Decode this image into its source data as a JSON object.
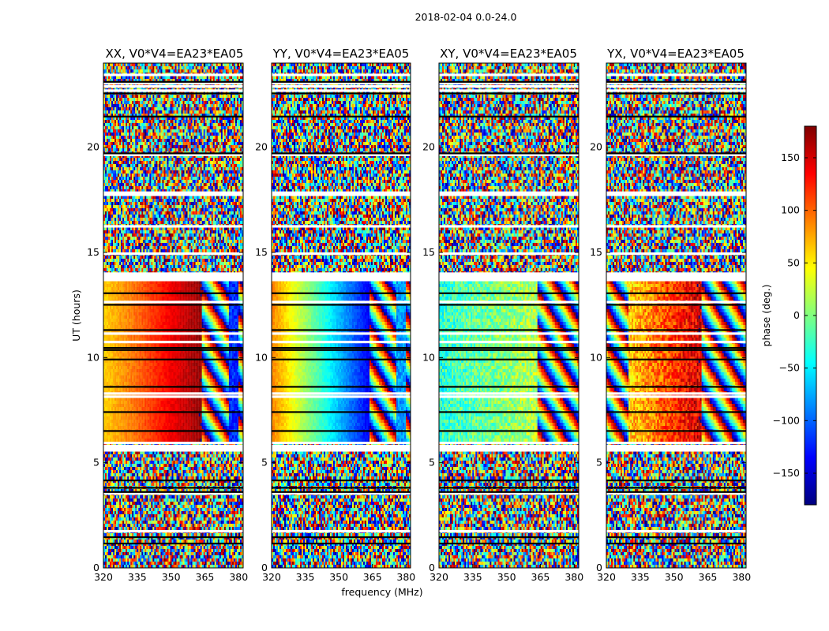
{
  "figure": {
    "suptitle": "2018-02-04 0.0-24.0"
  },
  "chart_data": {
    "type": "heatmap",
    "title": "2018-02-04 0.0-24.0",
    "xlabel": "frequency (MHz)",
    "ylabel": "UT (hours)",
    "xlim": [
      320,
      382
    ],
    "ylim": [
      0,
      24
    ],
    "xticks": [
      320,
      335,
      350,
      365,
      380
    ],
    "yticks": [
      0,
      5,
      10,
      15,
      20
    ],
    "colorbar": {
      "label": "phase (deg.)",
      "range": [
        -180,
        180
      ],
      "ticks": [
        150,
        100,
        50,
        0,
        -50,
        -100,
        -150
      ],
      "tick_labels": [
        "150",
        "100",
        "50",
        "0",
        "−50",
        "−100",
        "−150"
      ],
      "colormap": "jet",
      "colors": [
        "#00007f",
        "#0000ff",
        "#0080ff",
        "#00ffff",
        "#80ff80",
        "#ffff00",
        "#ff8000",
        "#ff0000",
        "#7f0000"
      ]
    },
    "panels": [
      {
        "name": "XX",
        "title": "XX, V0*V4=EA23*EA05",
        "coherent_ut": [
          6.0,
          13.6
        ],
        "coherent_freq": [
          320,
          364
        ],
        "phase_start": 60,
        "phase_end": 175,
        "edge_channel_phase": -120
      },
      {
        "name": "YY",
        "title": "YY, V0*V4=EA23*EA05",
        "coherent_ut": [
          6.0,
          13.6
        ],
        "coherent_freq": [
          320,
          364
        ],
        "phase_start": 90,
        "phase_end": -140,
        "edge_channel_phase": -80
      },
      {
        "name": "XY",
        "title": "XY, V0*V4=EA23*EA05",
        "coherent_ut": [
          6.0,
          13.6
        ],
        "coherent_freq": [
          320,
          364
        ],
        "phase_start": -30,
        "phase_end": 20,
        "edge_channel_phase": null
      },
      {
        "name": "YX",
        "title": "YX, V0*V4=EA23*EA05",
        "coherent_ut": [
          6.0,
          13.6
        ],
        "coherent_freq": [
          330,
          362
        ],
        "phase_start": 60,
        "phase_end": 150,
        "edge_channel_phase": null
      }
    ],
    "flagged_ut": [
      23.5,
      23.1,
      22.95,
      22.75,
      19.7,
      17.9,
      17.8,
      16.3,
      15.0,
      14.05,
      13.95,
      13.85,
      13.75,
      12.7,
      11.2,
      10.8,
      8.35,
      8.2,
      6.0,
      5.85,
      5.75,
      5.65,
      3.6,
      1.8
    ],
    "bad_ut": [
      23.15,
      22.6,
      21.5,
      19.75,
      13.1,
      12.55,
      11.35,
      10.5,
      10.4,
      9.95,
      8.65,
      7.45,
      6.55,
      4.2,
      3.85,
      3.65,
      1.5,
      1.2
    ]
  }
}
